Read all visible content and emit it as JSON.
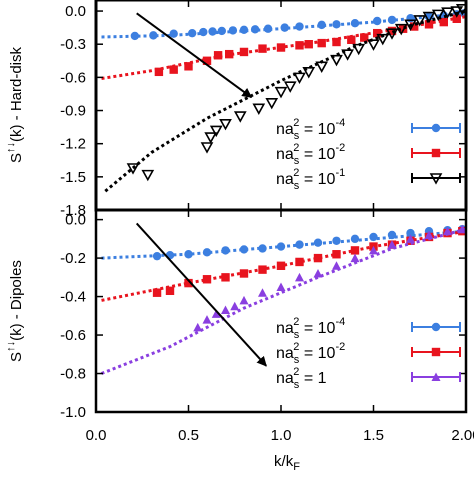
{
  "chart_data": [
    {
      "type": "scatter",
      "ylabel": {
        "main": "S",
        "sup": "↑↓",
        "rest": "(k) - Hard-disk"
      },
      "xlim": [
        0,
        2
      ],
      "ylim": [
        -1.8,
        0.1
      ],
      "yticks": [
        "0.0",
        "-0.3",
        "-0.6",
        "-0.9",
        "-1.2",
        "-1.5",
        "-1.8"
      ],
      "ytick_values": [
        0,
        -0.3,
        -0.6,
        -0.9,
        -1.2,
        -1.5,
        -1.8
      ],
      "arrow": {
        "from": [
          0.22,
          -0.02
        ],
        "to": [
          0.84,
          -0.78
        ]
      },
      "series": [
        {
          "name": {
            "pre": "na",
            "sub": "s",
            "sup": "2",
            "eq": " = 10",
            "exp": "-4"
          },
          "color": "#3c7fe0",
          "marker": "circle",
          "fit": [
            [
              0.03,
              -0.235
            ],
            [
              0.4,
              -0.22
            ],
            [
              1.0,
              -0.16
            ],
            [
              1.5,
              -0.1
            ],
            [
              2.0,
              -0.02
            ]
          ],
          "points": [
            [
              0.21,
              -0.225
            ],
            [
              0.31,
              -0.22
            ],
            [
              0.42,
              -0.205
            ],
            [
              0.52,
              -0.2
            ],
            [
              0.58,
              -0.19
            ],
            [
              0.63,
              -0.185
            ],
            [
              0.68,
              -0.18
            ],
            [
              0.74,
              -0.175
            ],
            [
              0.8,
              -0.17
            ],
            [
              0.86,
              -0.165
            ],
            [
              0.93,
              -0.16
            ],
            [
              1.02,
              -0.15
            ],
            [
              1.1,
              -0.14
            ],
            [
              1.22,
              -0.125
            ],
            [
              1.3,
              -0.12
            ],
            [
              1.4,
              -0.11
            ],
            [
              1.52,
              -0.09
            ],
            [
              1.6,
              -0.08
            ],
            [
              1.7,
              -0.065
            ],
            [
              1.8,
              -0.05
            ],
            [
              1.88,
              -0.04
            ],
            [
              1.95,
              -0.03
            ],
            [
              1.99,
              -0.02
            ]
          ]
        },
        {
          "name": {
            "pre": "na",
            "sub": "s",
            "sup": "2",
            "eq": " = 10",
            "exp": "-2"
          },
          "color": "#e8141e",
          "marker": "square",
          "fit": [
            [
              0.03,
              -0.61
            ],
            [
              0.3,
              -0.54
            ],
            [
              0.7,
              -0.4
            ],
            [
              1.2,
              -0.28
            ],
            [
              1.6,
              -0.17
            ],
            [
              2.0,
              -0.05
            ]
          ],
          "points": [
            [
              0.34,
              -0.55
            ],
            [
              0.42,
              -0.53
            ],
            [
              0.5,
              -0.5
            ],
            [
              0.6,
              -0.45
            ],
            [
              0.66,
              -0.4
            ],
            [
              0.72,
              -0.39
            ],
            [
              0.8,
              -0.37
            ],
            [
              0.9,
              -0.34
            ],
            [
              1.0,
              -0.33
            ],
            [
              1.1,
              -0.31
            ],
            [
              1.15,
              -0.3
            ],
            [
              1.22,
              -0.29
            ],
            [
              1.3,
              -0.28
            ],
            [
              1.38,
              -0.26
            ],
            [
              1.45,
              -0.24
            ],
            [
              1.52,
              -0.2
            ],
            [
              1.6,
              -0.18
            ],
            [
              1.66,
              -0.16
            ],
            [
              1.72,
              -0.14
            ],
            [
              1.8,
              -0.12
            ],
            [
              1.88,
              -0.1
            ],
            [
              1.95,
              -0.07
            ]
          ]
        },
        {
          "name": {
            "pre": "na",
            "sub": "s",
            "sup": "2",
            "eq": " = 10",
            "exp": "-1"
          },
          "color": "#000000",
          "marker": "triangle-down",
          "fit": [
            [
              0.05,
              -1.63
            ],
            [
              0.3,
              -1.28
            ],
            [
              0.6,
              -0.97
            ],
            [
              1.0,
              -0.63
            ],
            [
              1.4,
              -0.32
            ],
            [
              1.7,
              -0.13
            ],
            [
              2.0,
              0.0
            ]
          ],
          "points": [
            [
              0.2,
              -1.42
            ],
            [
              0.28,
              -1.48
            ],
            [
              0.6,
              -1.23
            ],
            [
              0.62,
              -1.14
            ],
            [
              0.65,
              -1.08
            ],
            [
              0.7,
              -1.02
            ],
            [
              0.78,
              -0.95
            ],
            [
              0.88,
              -0.88
            ],
            [
              0.95,
              -0.83
            ],
            [
              1.0,
              -0.73
            ],
            [
              1.05,
              -0.68
            ],
            [
              1.1,
              -0.6
            ],
            [
              1.15,
              -0.55
            ],
            [
              1.22,
              -0.5
            ],
            [
              1.3,
              -0.44
            ],
            [
              1.36,
              -0.39
            ],
            [
              1.42,
              -0.34
            ],
            [
              1.5,
              -0.3
            ],
            [
              1.55,
              -0.25
            ],
            [
              1.6,
              -0.2
            ],
            [
              1.65,
              -0.16
            ],
            [
              1.7,
              -0.12
            ],
            [
              1.75,
              -0.08
            ],
            [
              1.8,
              -0.05
            ],
            [
              1.85,
              -0.03
            ],
            [
              1.9,
              -0.01
            ],
            [
              1.95,
              0.0
            ],
            [
              1.98,
              0.02
            ]
          ]
        }
      ]
    },
    {
      "type": "scatter",
      "ylabel": {
        "main": "S",
        "sup": "↑↓",
        "rest": "(k) - Dipoles"
      },
      "xlabel": {
        "main": "k/k",
        "sub": "F"
      },
      "xlim": [
        0,
        2
      ],
      "xticks": [
        "0.0",
        "0.5",
        "1.0",
        "1.5",
        "2.00"
      ],
      "xtick_values": [
        0,
        0.5,
        1.0,
        1.5,
        2.0
      ],
      "ylim": [
        -1.0,
        0.05
      ],
      "yticks": [
        "0.0",
        "-0.2",
        "-0.4",
        "-0.6",
        "-0.8",
        "-1.0"
      ],
      "ytick_values": [
        0,
        -0.2,
        -0.4,
        -0.6,
        -0.8,
        -1.0
      ],
      "arrow": {
        "from": [
          0.22,
          -0.02
        ],
        "to": [
          0.92,
          -0.76
        ]
      },
      "series": [
        {
          "name": {
            "pre": "na",
            "sub": "s",
            "sup": "2",
            "eq": " = 10",
            "exp": "-4"
          },
          "color": "#3c7fe0",
          "marker": "circle",
          "fit": [
            [
              0.03,
              -0.2
            ],
            [
              0.5,
              -0.18
            ],
            [
              1.0,
              -0.14
            ],
            [
              1.5,
              -0.1
            ],
            [
              2.0,
              -0.06
            ]
          ],
          "points": [
            [
              0.33,
              -0.19
            ],
            [
              0.4,
              -0.185
            ],
            [
              0.5,
              -0.18
            ],
            [
              0.6,
              -0.17
            ],
            [
              0.7,
              -0.16
            ],
            [
              0.8,
              -0.155
            ],
            [
              0.9,
              -0.15
            ],
            [
              1.0,
              -0.14
            ],
            [
              1.1,
              -0.13
            ],
            [
              1.2,
              -0.12
            ],
            [
              1.3,
              -0.11
            ],
            [
              1.4,
              -0.1
            ],
            [
              1.5,
              -0.09
            ],
            [
              1.6,
              -0.08
            ],
            [
              1.7,
              -0.07
            ],
            [
              1.8,
              -0.06
            ],
            [
              1.9,
              -0.055
            ],
            [
              1.98,
              -0.05
            ]
          ]
        },
        {
          "name": {
            "pre": "na",
            "sub": "s",
            "sup": "2",
            "eq": " = 10",
            "exp": "-2"
          },
          "color": "#e8141e",
          "marker": "square",
          "fit": [
            [
              0.03,
              -0.42
            ],
            [
              0.5,
              -0.33
            ],
            [
              1.0,
              -0.24
            ],
            [
              1.5,
              -0.14
            ],
            [
              2.0,
              -0.06
            ]
          ],
          "points": [
            [
              0.33,
              -0.38
            ],
            [
              0.4,
              -0.37
            ],
            [
              0.5,
              -0.33
            ],
            [
              0.6,
              -0.31
            ],
            [
              0.7,
              -0.3
            ],
            [
              0.8,
              -0.28
            ],
            [
              0.9,
              -0.26
            ],
            [
              1.0,
              -0.24
            ],
            [
              1.1,
              -0.22
            ],
            [
              1.2,
              -0.2
            ],
            [
              1.3,
              -0.18
            ],
            [
              1.4,
              -0.16
            ],
            [
              1.5,
              -0.14
            ],
            [
              1.6,
              -0.13
            ],
            [
              1.7,
              -0.11
            ],
            [
              1.8,
              -0.09
            ],
            [
              1.9,
              -0.07
            ],
            [
              1.98,
              -0.06
            ]
          ]
        },
        {
          "name": {
            "pre": "na",
            "sub": "s",
            "sup": "2",
            "eq": " = 1",
            "exp": ""
          },
          "color": "#8a3fe0",
          "marker": "triangle-up",
          "fit": [
            [
              0.03,
              -0.8
            ],
            [
              0.4,
              -0.66
            ],
            [
              0.8,
              -0.46
            ],
            [
              1.2,
              -0.3
            ],
            [
              1.6,
              -0.15
            ],
            [
              2.0,
              -0.05
            ]
          ],
          "points": [
            [
              0.55,
              -0.56
            ],
            [
              0.6,
              -0.52
            ],
            [
              0.65,
              -0.49
            ],
            [
              0.7,
              -0.47
            ],
            [
              0.75,
              -0.45
            ],
            [
              0.8,
              -0.42
            ],
            [
              0.9,
              -0.38
            ],
            [
              1.0,
              -0.35
            ],
            [
              1.1,
              -0.3
            ],
            [
              1.2,
              -0.28
            ],
            [
              1.3,
              -0.24
            ],
            [
              1.4,
              -0.2
            ],
            [
              1.5,
              -0.16
            ],
            [
              1.6,
              -0.13
            ],
            [
              1.7,
              -0.1
            ],
            [
              1.8,
              -0.08
            ],
            [
              1.9,
              -0.06
            ],
            [
              1.98,
              -0.05
            ]
          ]
        }
      ]
    }
  ]
}
